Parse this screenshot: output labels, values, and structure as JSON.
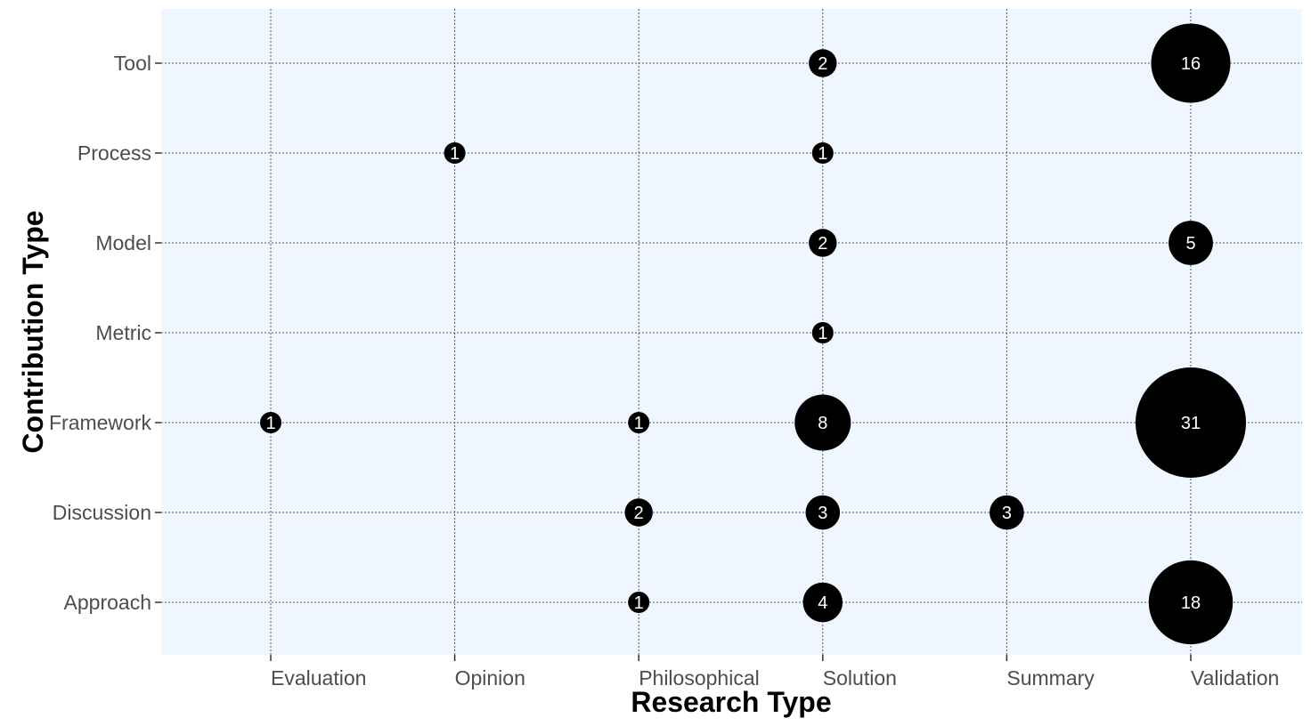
{
  "chart_data": {
    "type": "scatter",
    "subtype": "bubble",
    "xlabel": "Research Type",
    "ylabel": "Contribution Type",
    "x_categories": [
      "Evaluation",
      "Opinion",
      "Philosophical",
      "Solution",
      "Summary",
      "Validation"
    ],
    "y_categories": [
      "Approach",
      "Discussion",
      "Framework",
      "Metric",
      "Model",
      "Process",
      "Tool"
    ],
    "points": [
      {
        "x": "Solution",
        "y": "Tool",
        "value": 2
      },
      {
        "x": "Validation",
        "y": "Tool",
        "value": 16
      },
      {
        "x": "Opinion",
        "y": "Process",
        "value": 1
      },
      {
        "x": "Solution",
        "y": "Process",
        "value": 1
      },
      {
        "x": "Solution",
        "y": "Model",
        "value": 2
      },
      {
        "x": "Validation",
        "y": "Model",
        "value": 5
      },
      {
        "x": "Solution",
        "y": "Metric",
        "value": 1
      },
      {
        "x": "Evaluation",
        "y": "Framework",
        "value": 1
      },
      {
        "x": "Philosophical",
        "y": "Framework",
        "value": 1
      },
      {
        "x": "Solution",
        "y": "Framework",
        "value": 8
      },
      {
        "x": "Validation",
        "y": "Framework",
        "value": 31
      },
      {
        "x": "Philosophical",
        "y": "Discussion",
        "value": 2
      },
      {
        "x": "Solution",
        "y": "Discussion",
        "value": 3
      },
      {
        "x": "Summary",
        "y": "Discussion",
        "value": 3
      },
      {
        "x": "Philosophical",
        "y": "Approach",
        "value": 1
      },
      {
        "x": "Solution",
        "y": "Approach",
        "value": 4
      },
      {
        "x": "Validation",
        "y": "Approach",
        "value": 18
      }
    ],
    "grid": true,
    "legend": "none",
    "colors": {
      "panel_background": "#f0f6ff",
      "bubble_fill": "#000000",
      "bubble_text": "#ffffff",
      "gridline": "#555555",
      "tick_text": "#4d4d4d",
      "title_text": "#000000"
    }
  }
}
